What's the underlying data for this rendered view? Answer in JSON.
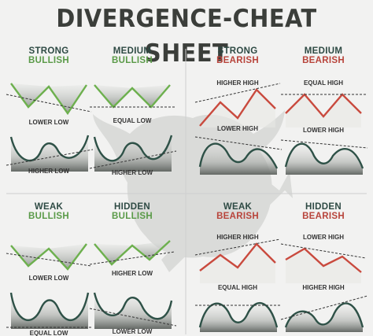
{
  "title": "DIVERGENCE-CHEAT SHEET",
  "colors": {
    "background": "#f2f2f1",
    "bullish": "#5a9a48",
    "bearish": "#b8443b",
    "price_line_bull": "#6db04e",
    "price_line_bear": "#c94a3e",
    "oscillator": "#2e5147",
    "label": "#333333",
    "divider": "#cfcfcf"
  },
  "panels": [
    {
      "heading_1": "STRONG",
      "heading_2": "BULLISH",
      "sentiment": "bullish",
      "price_label": "LOWER LOW",
      "osc_label": "HIGHER LOW"
    },
    {
      "heading_1": "MEDIUM",
      "heading_2": "BULLISH",
      "sentiment": "bullish",
      "price_label": "EQUAL LOW",
      "osc_label": "HIGHER LOW"
    },
    {
      "heading_1": "STRONG",
      "heading_2": "BEARISH",
      "sentiment": "bearish",
      "price_label": "HIGHER HIGH",
      "osc_label": "LOWER HIGH"
    },
    {
      "heading_1": "MEDIUM",
      "heading_2": "BEARISH",
      "sentiment": "bearish",
      "price_label": "EQUAL HIGH",
      "osc_label": "LOWER HIGH"
    },
    {
      "heading_1": "WEAK",
      "heading_2": "BULLISH",
      "sentiment": "bullish",
      "price_label": "LOWER LOW",
      "osc_label": "EQUAL LOW"
    },
    {
      "heading_1": "HIDDEN",
      "heading_2": "BULLISH",
      "sentiment": "bullish",
      "price_label": "HIGHER LOW",
      "osc_label": "LOWER LOW"
    },
    {
      "heading_1": "WEAK",
      "heading_2": "BEARISH",
      "sentiment": "bearish",
      "price_label": "HIGHER HIGH",
      "osc_label": "EQUAL HIGH"
    },
    {
      "heading_1": "HIDDEN",
      "heading_2": "BEARISH",
      "sentiment": "bearish",
      "price_label": "LOWER HIGH",
      "osc_label": "HIGHER HIGH"
    }
  ]
}
